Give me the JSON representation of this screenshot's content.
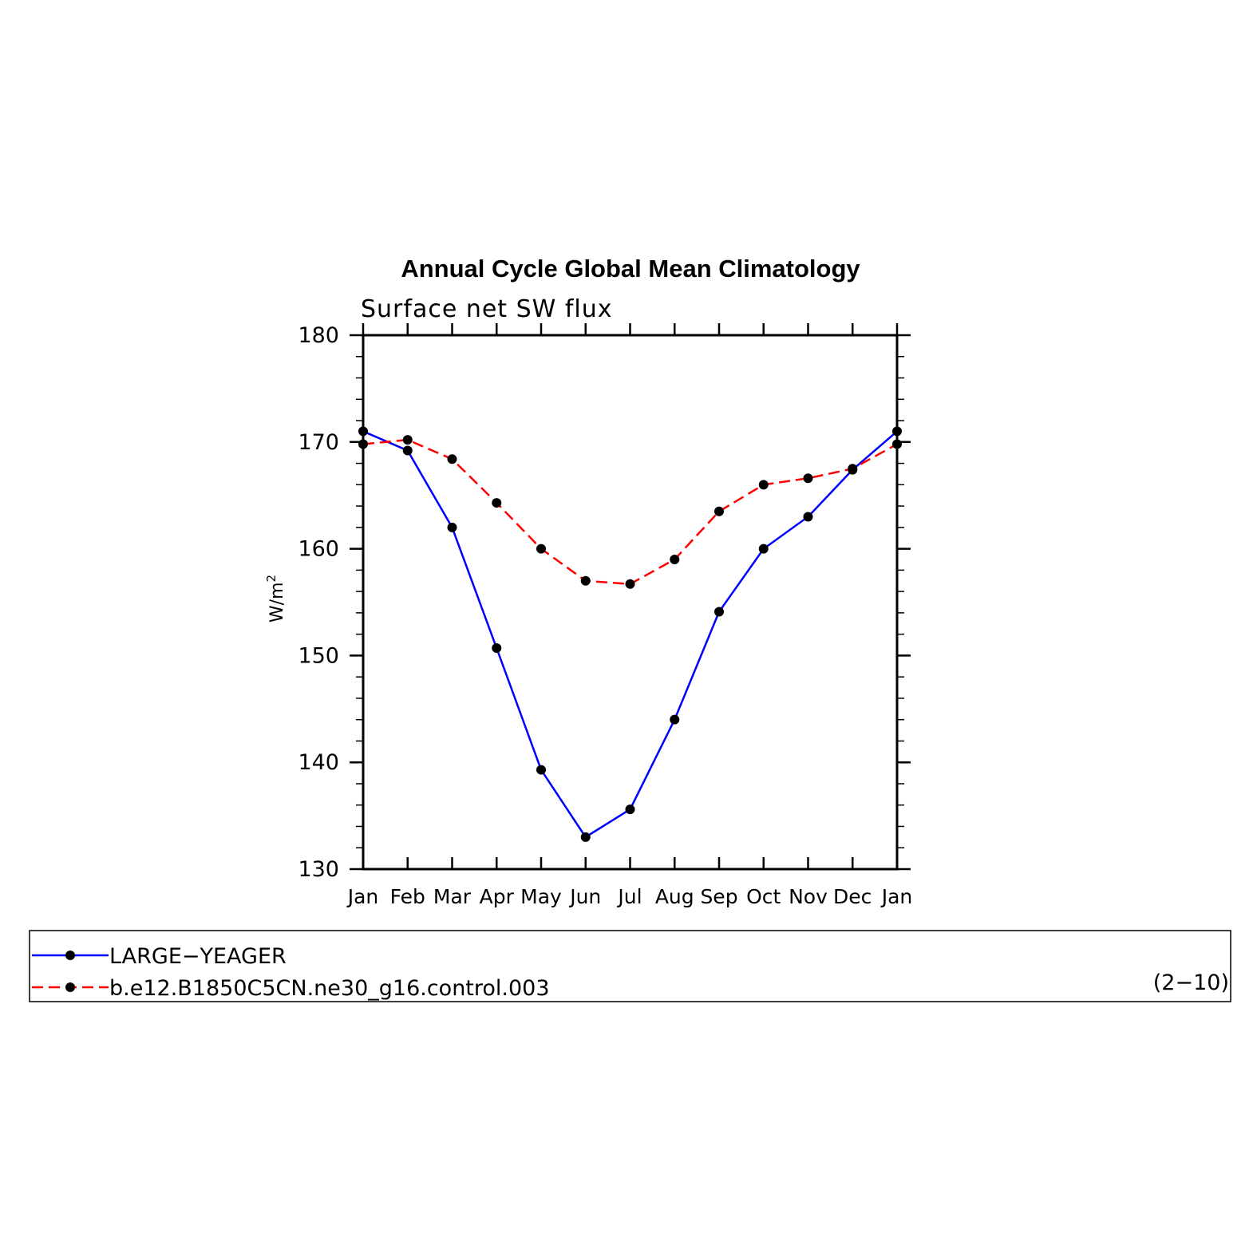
{
  "chart_data": {
    "type": "line",
    "title": "Annual Cycle Global Mean Climatology",
    "subtitle": "Surface net SW flux",
    "ylabel": "W/m",
    "ylabel_superscript": "2",
    "xlabel": "",
    "categories": [
      "Jan",
      "Feb",
      "Mar",
      "Apr",
      "May",
      "Jun",
      "Jul",
      "Aug",
      "Sep",
      "Oct",
      "Nov",
      "Dec",
      "Jan"
    ],
    "ylim": [
      130,
      180
    ],
    "yticks": [
      130,
      140,
      150,
      160,
      170,
      180
    ],
    "ytick_labels": [
      "130",
      "140",
      "150",
      "160",
      "170",
      "180"
    ],
    "grid": false,
    "legend_position": "bottom",
    "series": [
      {
        "name": "LARGE−YEAGER",
        "color": "#0000ff",
        "dash": "solid",
        "marker_color": "#000000",
        "values": [
          171.0,
          169.2,
          162.0,
          150.7,
          139.3,
          133.0,
          135.6,
          144.0,
          154.1,
          160.0,
          163.0,
          167.4,
          171.0
        ]
      },
      {
        "name": "b.e12.B1850C5CN.ne30_g16.control.003",
        "color": "#ff0000",
        "dash": "dashed",
        "marker_color": "#000000",
        "values": [
          169.8,
          170.2,
          168.4,
          164.3,
          160.0,
          157.0,
          156.7,
          159.0,
          163.5,
          166.0,
          166.6,
          167.5,
          169.8
        ]
      }
    ],
    "annotation": "(2−10)"
  }
}
